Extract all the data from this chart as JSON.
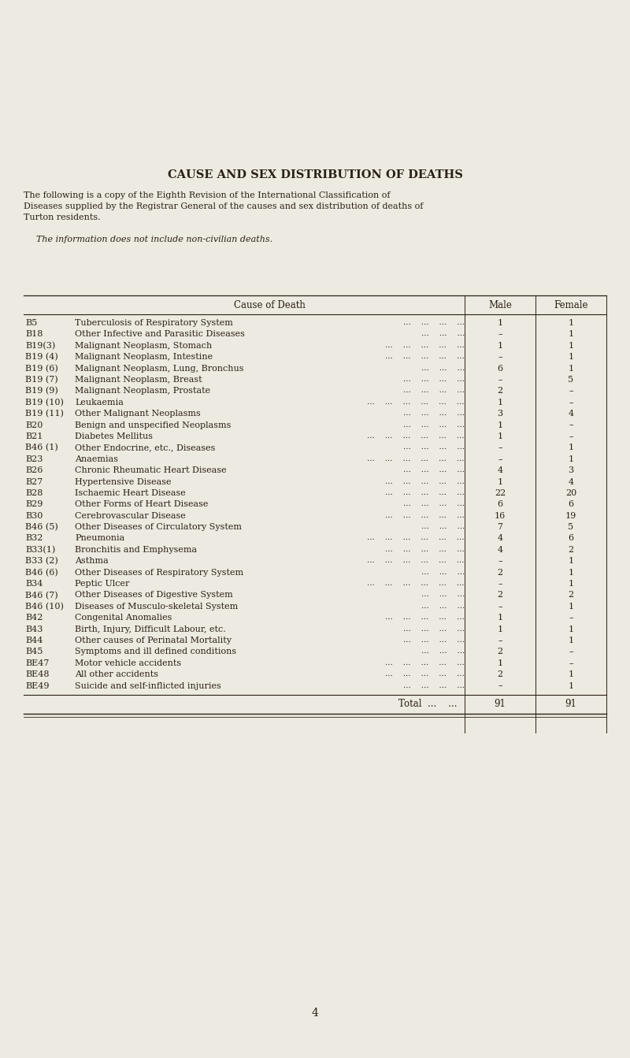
{
  "title": "CAUSE AND SEX DISTRIBUTION OF DEATHS",
  "subtitle_line1": "The following is a copy of the Eighth Revision of the International Classification of",
  "subtitle_line2": "Diseases supplied by the Registrar General of the causes and sex distribution of deaths of",
  "subtitle_line3": "Turton residents.",
  "subtitle_note": "The information does not include non-civilian deaths.",
  "col_header_cause": "Cause of Death",
  "col_header_male": "Male",
  "col_header_female": "Female",
  "rows": [
    {
      "code": "B5",
      "cause": "Tuberculosis of Respiratory System",
      "dots": "...    ...    ...    ...",
      "male": "1",
      "female": "1"
    },
    {
      "code": "B18",
      "cause": "Other Infective and Parasitic Diseases",
      "dots": "...    ...    ...",
      "male": "–",
      "female": "1"
    },
    {
      "code": "B19(3)",
      "cause": "Malignant Neoplasm, Stomach",
      "dots": "...    ...    ...    ...    ...",
      "male": "1",
      "female": "1"
    },
    {
      "code": "B19 (4)",
      "cause": "Malignant Neoplasm, Intestine",
      "dots": "...    ...    ...    ...    ...",
      "male": "–",
      "female": "1"
    },
    {
      "code": "B19 (6)",
      "cause": "Malignant Neoplasm, Lung, Bronchus",
      "dots": "...    ...    ...",
      "male": "6",
      "female": "1"
    },
    {
      "code": "B19 (7)",
      "cause": "Malignant Neoplasm, Breast",
      "dots": "...    ...    ...    ...",
      "male": "–",
      "female": "5"
    },
    {
      "code": "B19 (9)",
      "cause": "Malignant Neoplasm, Prostate",
      "dots": "...    ...    ...    ...",
      "male": "2",
      "female": "–"
    },
    {
      "code": "B19 (10)",
      "cause": "Leukaemia",
      "dots": "...    ...    ...    ...    ...    ...",
      "male": "1",
      "female": "–"
    },
    {
      "code": "B19 (11)",
      "cause": "Other Malignant Neoplasms",
      "dots": "...    ...    ...    ...",
      "male": "3",
      "female": "4"
    },
    {
      "code": "B20",
      "cause": "Benign and unspecified Neoplasms",
      "dots": "...    ...    ...    ...",
      "male": "1",
      "female": "–"
    },
    {
      "code": "B21",
      "cause": "Diabetes Mellitus",
      "dots": "...    ...    ...    ...    ...    ...",
      "male": "1",
      "female": "–"
    },
    {
      "code": "B46 (1)",
      "cause": "Other Endocrine, etc., Diseases",
      "dots": "...    ...    ...    ...",
      "male": "–",
      "female": "1"
    },
    {
      "code": "B23",
      "cause": "Anaemias",
      "dots": "...    ...    ...    ...    ...    ...",
      "male": "–",
      "female": "1"
    },
    {
      "code": "B26",
      "cause": "Chronic Rheumatic Heart Disease",
      "dots": "...    ...    ...    ...",
      "male": "4",
      "female": "3"
    },
    {
      "code": "B27",
      "cause": "Hypertensive Disease",
      "dots": "...    ...    ...    ...    ...",
      "male": "1",
      "female": "4"
    },
    {
      "code": "B28",
      "cause": "Ischaemic Heart Disease",
      "dots": "...    ...    ...    ...    ...",
      "male": "22",
      "female": "20"
    },
    {
      "code": "B29",
      "cause": "Other Forms of Heart Disease",
      "dots": "...    ...    ...    ...",
      "male": "6",
      "female": "6"
    },
    {
      "code": "B30",
      "cause": "Cerebrovascular Disease",
      "dots": "...    ...    ...    ...    ...",
      "male": "16",
      "female": "19"
    },
    {
      "code": "B46 (5)",
      "cause": "Other Diseases of Circulatory System",
      "dots": "...    ...    ...",
      "male": "7",
      "female": "5"
    },
    {
      "code": "B32",
      "cause": "Pneumonia",
      "dots": "...    ...    ...    ...    ...    ...",
      "male": "4",
      "female": "6"
    },
    {
      "code": "B33(1)",
      "cause": "Bronchitis and Emphysema",
      "dots": "...    ...    ...    ...    ...",
      "male": "4",
      "female": "2"
    },
    {
      "code": "B33 (2)",
      "cause": "Asthma",
      "dots": "...    ...    ...    ...    ...    ...",
      "male": "–",
      "female": "1"
    },
    {
      "code": "B46 (6)",
      "cause": "Other Diseases of Respiratory System",
      "dots": "...    ...    ...",
      "male": "2",
      "female": "1"
    },
    {
      "code": "B34",
      "cause": "Peptic Ulcer",
      "dots": "...    ...    ...    ...    ...    ...",
      "male": "–",
      "female": "1"
    },
    {
      "code": "B46 (7)",
      "cause": "Other Diseases of Digestive System",
      "dots": "...    ...    ...",
      "male": "2",
      "female": "2"
    },
    {
      "code": "B46 (10)",
      "cause": "Diseases of Musculo-skeletal System",
      "dots": "...    ...    ...",
      "male": "–",
      "female": "1"
    },
    {
      "code": "B42",
      "cause": "Congenital Anomalies",
      "dots": "...    ...    ...    ...    ...",
      "male": "1",
      "female": "–"
    },
    {
      "code": "B43",
      "cause": "Birth, Injury, Difficult Labour, etc.",
      "dots": "...    ...    ...    ...",
      "male": "1",
      "female": "1"
    },
    {
      "code": "B44",
      "cause": "Other causes of Perinatal Mortality",
      "dots": "...    ...    ...    ...",
      "male": "–",
      "female": "1"
    },
    {
      "code": "B45",
      "cause": "Symptoms and ill defined conditions",
      "dots": "...    ...    ...",
      "male": "2",
      "female": "–"
    },
    {
      "code": "BE47",
      "cause": "Motor vehicle accidents",
      "dots": "...    ...    ...    ...    ...",
      "male": "1",
      "female": "–"
    },
    {
      "code": "BE48",
      "cause": "All other accidents",
      "dots": "...    ...    ...    ...    ...",
      "male": "2",
      "female": "1"
    },
    {
      "code": "BE49",
      "cause": "Suicide and self-inflicted injuries",
      "dots": "...    ...    ...    ...",
      "male": "–",
      "female": "1"
    }
  ],
  "total_label": "Total",
  "total_dots": "...    ...",
  "total_male": "91",
  "total_female": "91",
  "page_number": "4",
  "bg_color": "#edeae2",
  "text_color": "#2a2015",
  "title_fontsize": 10.5,
  "body_fontsize": 8.0,
  "header_fontsize": 8.5
}
